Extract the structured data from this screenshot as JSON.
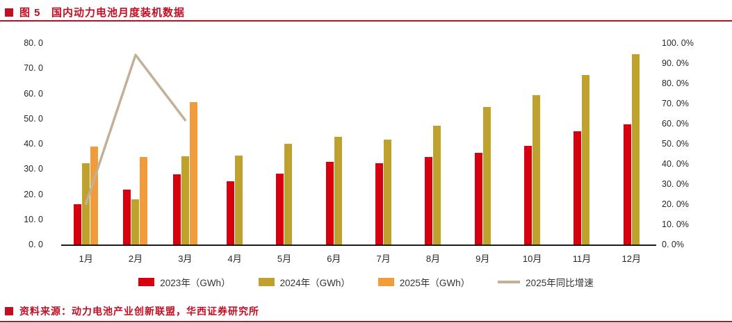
{
  "header": {
    "title": "图 5   国内动力电池月度装机数据"
  },
  "footer": {
    "source": "资料来源：动力电池产业创新联盟，华西证券研究所"
  },
  "colors": {
    "accent_red": "#c30d23",
    "bar_2023": "#d7000f",
    "bar_2024": "#bfa22e",
    "bar_2025": "#f09c3c",
    "growth_line": "#c2b097",
    "axis_text": "#262626"
  },
  "chart_data": {
    "type": "bar",
    "title": "国内动力电池月度装机数据",
    "xlabel": "",
    "ylabel_left": "GWh",
    "ylabel_right": "%",
    "grid": false,
    "legend_position": "bottom",
    "categories": [
      "1月",
      "2月",
      "3月",
      "4月",
      "5月",
      "6月",
      "7月",
      "8月",
      "9月",
      "10月",
      "11月",
      "12月"
    ],
    "series": [
      {
        "name": "2023年（GWh）",
        "kind": "bar",
        "axis": "left",
        "color": "#d7000f",
        "values": [
          16.1,
          21.9,
          27.8,
          25.1,
          28.2,
          32.9,
          32.2,
          34.9,
          36.4,
          39.2,
          44.9,
          47.8
        ]
      },
      {
        "name": "2024年（GWh）",
        "kind": "bar",
        "axis": "left",
        "color": "#bfa22e",
        "values": [
          32.3,
          18.0,
          35.0,
          35.4,
          39.9,
          42.8,
          41.6,
          47.2,
          54.5,
          59.2,
          67.2,
          75.5
        ]
      },
      {
        "name": "2025年（GWh）",
        "kind": "bar",
        "axis": "left",
        "color": "#f09c3c",
        "values": [
          38.8,
          34.9,
          56.6,
          null,
          null,
          null,
          null,
          null,
          null,
          null,
          null,
          null
        ]
      },
      {
        "name": "2025年同比增速",
        "kind": "line",
        "axis": "right",
        "color": "#c2b097",
        "values": [
          20.2,
          94.1,
          61.8,
          null,
          null,
          null,
          null,
          null,
          null,
          null,
          null,
          null
        ]
      }
    ],
    "left_axis": {
      "min": 0,
      "max": 80,
      "step": 10,
      "labels": [
        "0. 0",
        "10. 0",
        "20. 0",
        "30. 0",
        "40. 0",
        "50. 0",
        "60. 0",
        "70. 0",
        "80. 0"
      ]
    },
    "right_axis": {
      "min": 0,
      "max": 100,
      "step": 10,
      "labels": [
        "0. 0%",
        "10. 0%",
        "20. 0%",
        "30. 0%",
        "40. 0%",
        "50. 0%",
        "60. 0%",
        "70. 0%",
        "80. 0%",
        "90. 0%",
        "100. 0%"
      ]
    }
  }
}
